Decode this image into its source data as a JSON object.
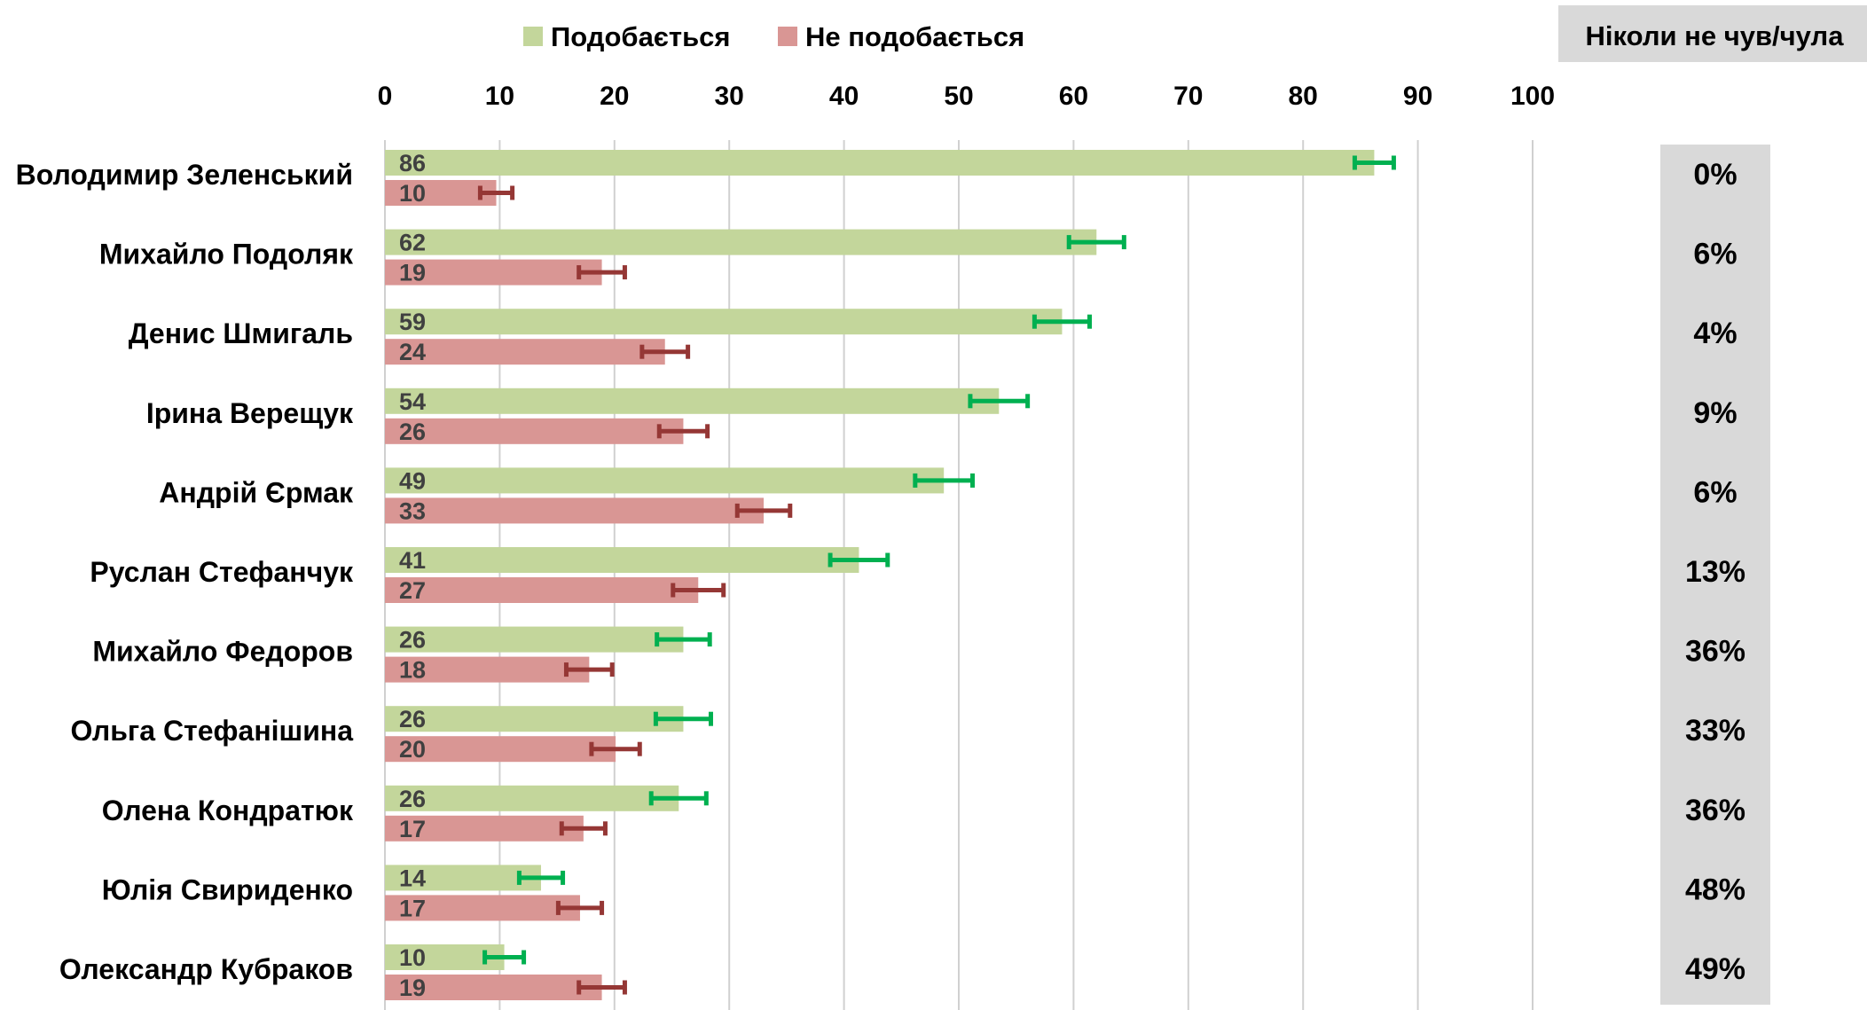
{
  "colors": {
    "like_bar": "#c3d69b",
    "dislike_bar": "#d99694",
    "like_err": "#00b050",
    "dislike_err": "#953735",
    "gridline": "#d0d0d0",
    "panel": "#d9d9d9"
  },
  "legend": {
    "like": "Подобається",
    "dislike": "Не подобається",
    "never_header": "Ніколи не чув/чула"
  },
  "chart_data": {
    "type": "bar",
    "orientation": "horizontal",
    "xlim": [
      0,
      100
    ],
    "ticks": [
      "0",
      "10",
      "20",
      "30",
      "40",
      "50",
      "60",
      "70",
      "80",
      "90",
      "100"
    ],
    "grid": true,
    "legend_placement": "top",
    "categories": [
      "Володимир Зеленський",
      "Михайло Подоляк",
      "Денис Шмигаль",
      "Ірина Верещук",
      "Андрій Єрмак",
      "Руслан Стефанчук",
      "Михайло Федоров",
      "Ольга Стефанішина",
      "Олена Кондратюк",
      "Юлія Свириденко",
      "Олександр Кубраков"
    ],
    "series": [
      {
        "name": "Подобається",
        "values": [
          86.2,
          62.0,
          59.0,
          53.5,
          48.7,
          41.3,
          26.0,
          26.0,
          25.6,
          13.6,
          10.4
        ],
        "labels": [
          "86",
          "62",
          "59",
          "54",
          "49",
          "41",
          "26",
          "26",
          "26",
          "14",
          "10"
        ],
        "error": [
          1.7,
          2.4,
          2.4,
          2.5,
          2.5,
          2.5,
          2.3,
          2.4,
          2.4,
          1.9,
          1.7
        ]
      },
      {
        "name": "Не подобається",
        "values": [
          9.7,
          18.9,
          24.4,
          26.0,
          33.0,
          27.3,
          17.8,
          20.1,
          17.3,
          17.0,
          18.9
        ],
        "labels": [
          "10",
          "19",
          "24",
          "26",
          "33",
          "27",
          "18",
          "20",
          "17",
          "17",
          "19"
        ],
        "error": [
          1.4,
          2.0,
          2.0,
          2.1,
          2.3,
          2.2,
          2.0,
          2.1,
          1.9,
          1.9,
          2.0
        ]
      }
    ],
    "never_heard": [
      "0%",
      "6%",
      "4%",
      "9%",
      "6%",
      "13%",
      "36%",
      "33%",
      "36%",
      "48%",
      "49%"
    ]
  }
}
